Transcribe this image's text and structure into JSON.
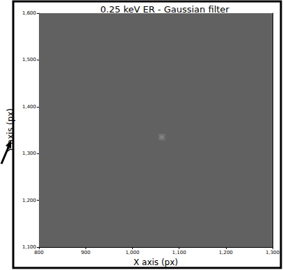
{
  "chart_data": {
    "type": "heatmap",
    "title": "0.25 keV ER - Gaussian filter",
    "x_label": "X axis (px)",
    "y_label": "Y axis (px)",
    "xlim": [
      800,
      1300
    ],
    "ylim": [
      1100,
      1600
    ],
    "xticks": [
      800,
      900,
      1000,
      1100,
      1200,
      1300
    ],
    "yticks": [
      1100,
      1200,
      1300,
      1400,
      1500,
      1600
    ],
    "cells": [
      [
        800,
        1300,
        1100,
        1600,
        0.38
      ],
      [
        1056,
        1070,
        1328,
        1342,
        0.45
      ],
      [
        1060,
        1066,
        1332,
        1338,
        0.52
      ]
    ],
    "clim": [
      0,
      1
    ]
  }
}
